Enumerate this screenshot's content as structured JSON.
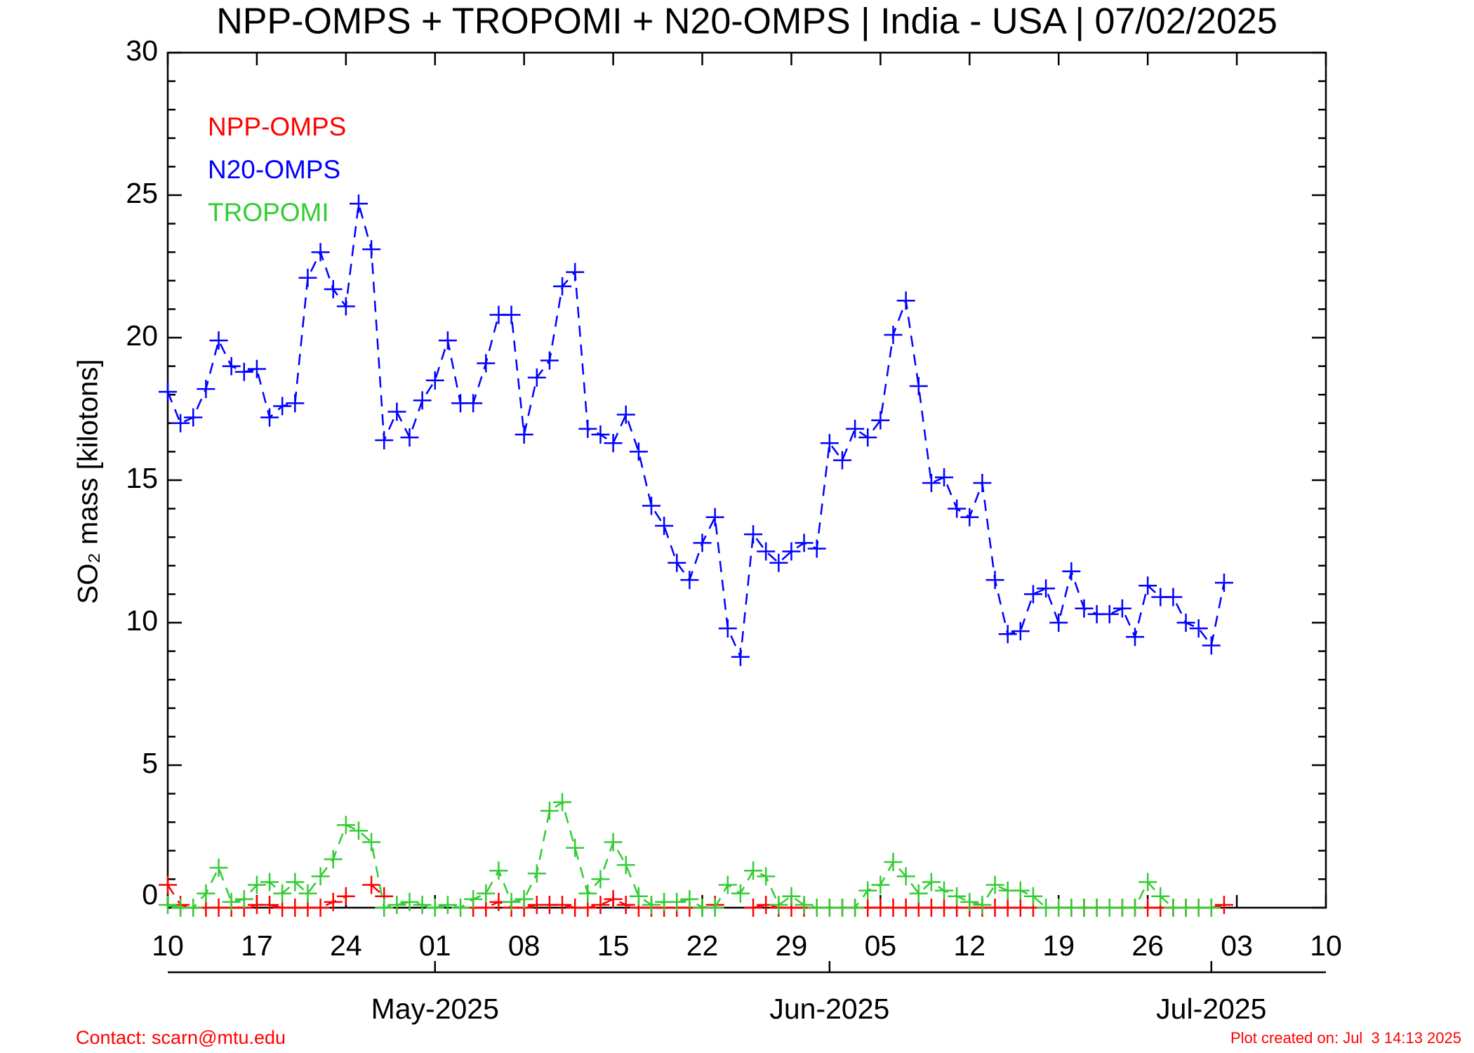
{
  "chart_data": {
    "type": "line",
    "title": "NPP-OMPS + TROPOMI + N20-OMPS | India - USA | 07/02/2025",
    "y_label": "SO₂ mass [kilotons]",
    "x": [
      "2025-04-10",
      "2025-04-11",
      "2025-04-12",
      "2025-04-13",
      "2025-04-14",
      "2025-04-15",
      "2025-04-16",
      "2025-04-17",
      "2025-04-18",
      "2025-04-19",
      "2025-04-20",
      "2025-04-21",
      "2025-04-22",
      "2025-04-23",
      "2025-04-24",
      "2025-04-25",
      "2025-04-26",
      "2025-04-27",
      "2025-04-28",
      "2025-04-29",
      "2025-04-30",
      "2025-05-01",
      "2025-05-02",
      "2025-05-03",
      "2025-05-04",
      "2025-05-05",
      "2025-05-06",
      "2025-05-07",
      "2025-05-08",
      "2025-05-09",
      "2025-05-10",
      "2025-05-11",
      "2025-05-12",
      "2025-05-13",
      "2025-05-14",
      "2025-05-15",
      "2025-05-16",
      "2025-05-17",
      "2025-05-18",
      "2025-05-19",
      "2025-05-20",
      "2025-05-21",
      "2025-05-22",
      "2025-05-23",
      "2025-05-24",
      "2025-05-25",
      "2025-05-26",
      "2025-05-27",
      "2025-05-28",
      "2025-05-29",
      "2025-05-30",
      "2025-05-31",
      "2025-06-01",
      "2025-06-02",
      "2025-06-03",
      "2025-06-04",
      "2025-06-05",
      "2025-06-06",
      "2025-06-07",
      "2025-06-08",
      "2025-06-09",
      "2025-06-10",
      "2025-06-11",
      "2025-06-12",
      "2025-06-13",
      "2025-06-14",
      "2025-06-15",
      "2025-06-16",
      "2025-06-17",
      "2025-06-18",
      "2025-06-19",
      "2025-06-20",
      "2025-06-21",
      "2025-06-22",
      "2025-06-23",
      "2025-06-24",
      "2025-06-25",
      "2025-06-26",
      "2025-06-27",
      "2025-06-28",
      "2025-06-29",
      "2025-06-30",
      "2025-07-01",
      "2025-07-02"
    ],
    "series": [
      {
        "name": "NPP-OMPS",
        "color": "#ff0000",
        "values": [
          0.8,
          0.1,
          0.0,
          0.0,
          0.0,
          0.0,
          0.0,
          0.1,
          0.1,
          0.0,
          0.0,
          0.0,
          0.0,
          0.2,
          0.4,
          null,
          0.8,
          0.4,
          null,
          null,
          null,
          null,
          null,
          null,
          0.0,
          0.0,
          0.2,
          0.0,
          0.0,
          0.1,
          0.1,
          0.1,
          0.0,
          0.0,
          0.1,
          0.3,
          0.1,
          0.0,
          0.0,
          0.0,
          0.0,
          0.0,
          0.0,
          0.1,
          null,
          null,
          0.0,
          0.1,
          0.0,
          0.0,
          0.0,
          0.0,
          0.0,
          0.0,
          0.0,
          0.0,
          0.0,
          0.0,
          0.0,
          0.0,
          0.0,
          0.0,
          0.0,
          0.0,
          0.0,
          0.0,
          0.0,
          0.0,
          0.0,
          null,
          0.0,
          0.0,
          0.0,
          0.0,
          0.0,
          0.0,
          0.0,
          0.0,
          0.0,
          0.0,
          0.0,
          0.0,
          0.0,
          0.1
        ]
      },
      {
        "name": "N20-OMPS",
        "color": "#0000ff",
        "values": [
          18.1,
          17.0,
          17.2,
          18.2,
          19.9,
          19.0,
          18.8,
          18.9,
          17.2,
          17.6,
          17.7,
          22.1,
          23.0,
          21.7,
          21.1,
          24.7,
          23.1,
          16.4,
          17.4,
          16.5,
          17.8,
          18.5,
          19.9,
          17.7,
          17.7,
          19.1,
          20.8,
          20.8,
          16.6,
          18.6,
          19.2,
          21.8,
          22.3,
          16.8,
          16.6,
          16.3,
          17.3,
          16.0,
          14.1,
          13.4,
          12.1,
          11.5,
          12.8,
          13.7,
          9.8,
          8.8,
          13.1,
          12.5,
          12.1,
          12.5,
          12.8,
          12.6,
          16.3,
          15.7,
          16.8,
          16.5,
          17.1,
          20.1,
          21.3,
          18.3,
          14.9,
          15.1,
          14.0,
          13.7,
          14.9,
          11.5,
          9.6,
          9.7,
          11.0,
          11.2,
          10.0,
          11.8,
          10.5,
          10.3,
          10.3,
          10.5,
          9.5,
          11.3,
          10.9,
          10.9,
          10.0,
          9.8,
          9.2,
          11.4
        ]
      },
      {
        "name": "TROPOMI",
        "color": "#33cc33",
        "values": [
          0.1,
          0.0,
          0.0,
          0.5,
          1.4,
          0.2,
          0.3,
          0.8,
          0.9,
          0.5,
          0.9,
          0.5,
          1.1,
          1.7,
          2.9,
          2.7,
          2.3,
          0.0,
          0.1,
          0.2,
          0.1,
          0.0,
          0.1,
          0.0,
          0.3,
          0.5,
          1.3,
          0.2,
          0.3,
          1.2,
          3.4,
          3.7,
          2.1,
          0.5,
          1.0,
          2.3,
          1.5,
          0.4,
          0.1,
          0.2,
          0.2,
          0.3,
          0.0,
          0.0,
          0.8,
          0.5,
          1.3,
          1.1,
          0.1,
          0.4,
          0.1,
          0.0,
          0.0,
          0.0,
          0.0,
          0.6,
          0.8,
          1.6,
          1.1,
          0.5,
          0.9,
          0.6,
          0.4,
          0.2,
          0.1,
          0.8,
          0.6,
          0.6,
          0.4,
          0.0,
          0.0,
          0.0,
          0.0,
          0.0,
          0.0,
          0.0,
          0.0,
          0.9,
          0.4,
          0.0,
          0.0,
          0.0,
          0.0,
          null
        ]
      }
    ],
    "xlim": [
      "2025-04-10",
      "2025-07-10"
    ],
    "xticks": [
      {
        "value": "2025-04-10",
        "label": "10"
      },
      {
        "value": "2025-04-17",
        "label": "17"
      },
      {
        "value": "2025-04-24",
        "label": "24"
      },
      {
        "value": "2025-05-01",
        "label": "01"
      },
      {
        "value": "2025-05-08",
        "label": "08"
      },
      {
        "value": "2025-05-15",
        "label": "15"
      },
      {
        "value": "2025-05-22",
        "label": "22"
      },
      {
        "value": "2025-05-29",
        "label": "29"
      },
      {
        "value": "2025-06-05",
        "label": "05"
      },
      {
        "value": "2025-06-12",
        "label": "12"
      },
      {
        "value": "2025-06-19",
        "label": "19"
      },
      {
        "value": "2025-06-26",
        "label": "26"
      },
      {
        "value": "2025-07-03",
        "label": "03"
      },
      {
        "value": "2025-07-10",
        "label": "10"
      }
    ],
    "month_ticks": [
      {
        "value": "2025-05-01",
        "label": "May-2025"
      },
      {
        "value": "2025-06-01",
        "label": "Jun-2025"
      },
      {
        "value": "2025-07-01",
        "label": "Jul-2025"
      }
    ],
    "ylim": [
      0,
      30
    ],
    "yticks": [
      0,
      5,
      10,
      15,
      20,
      25,
      30
    ],
    "yminorticks": [
      1,
      2,
      3,
      4,
      6,
      7,
      8,
      9,
      11,
      12,
      13,
      14,
      16,
      17,
      18,
      19,
      21,
      22,
      23,
      24,
      26,
      27,
      28,
      29
    ],
    "legend": "upper left",
    "line_style": "dashed",
    "marker": "+",
    "contact": "Contact: scarn@mtu.edu",
    "created": "Plot created on: Jul  3 14:13 2025"
  }
}
